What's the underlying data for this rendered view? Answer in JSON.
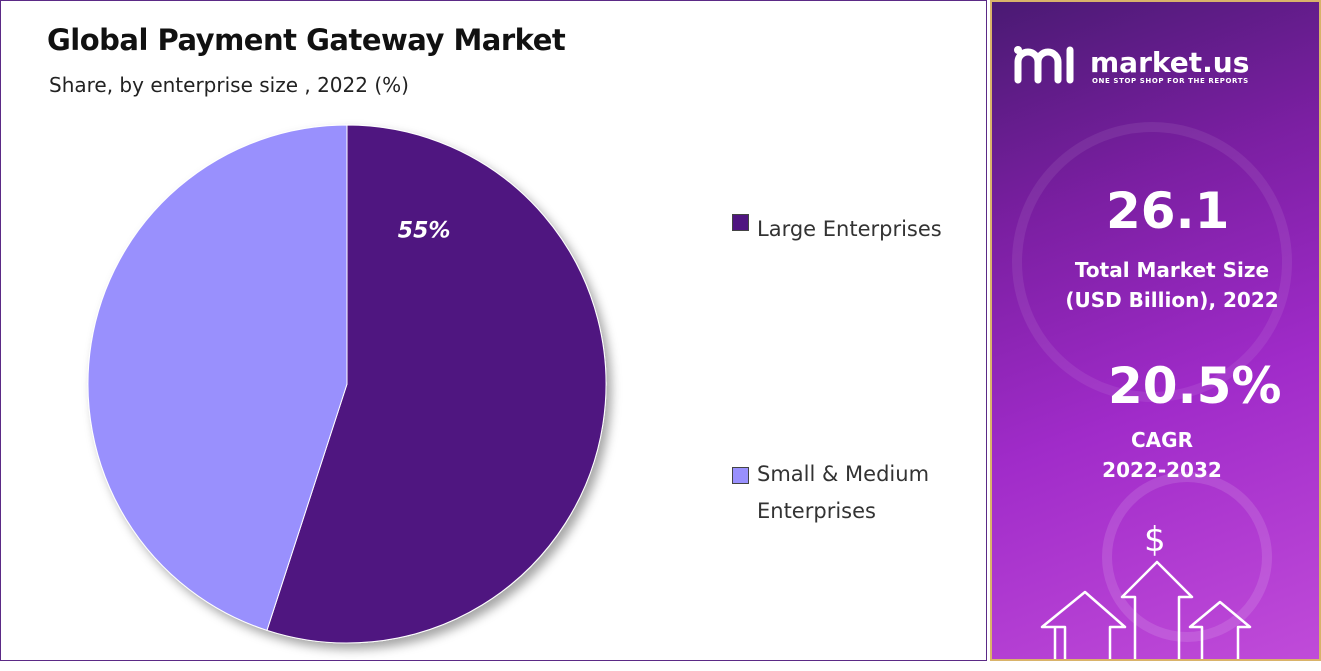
{
  "title": "Global Payment Gateway Market",
  "subtitle": "Share, by enterprise size , 2022 (%)",
  "chart_data": {
    "type": "pie",
    "title": "Global Payment Gateway Market",
    "subtitle": "Share, by enterprise size , 2022 (%)",
    "slices": [
      {
        "name": "Large Enterprises",
        "value": 55,
        "label": "55%",
        "color": "#4f1580"
      },
      {
        "name": "Small & Medium Enterprises",
        "value": 45,
        "label": "",
        "color": "#9990fd"
      }
    ],
    "legend_position": "right"
  },
  "legend": [
    {
      "lines": [
        "Large Enterprises"
      ],
      "color": "#4f1580"
    },
    {
      "lines": [
        "Small & Medium",
        "Enterprises"
      ],
      "color": "#9990fd"
    }
  ],
  "panel": {
    "brand": "market.us",
    "tagline": "ONE STOP SHOP FOR THE REPORTS",
    "market_size_value": "26.1",
    "market_size_label_line1": "Total Market Size",
    "market_size_label_line2": "(USD Billion), 2022",
    "cagr_value": "20.5%",
    "cagr_label_line1": "CAGR",
    "cagr_label_line2": "2022-2032",
    "currency_symbol": "$",
    "colors": {
      "panel_top": "#4a1a73",
      "panel_bottom": "#c04bd9",
      "border": "#d9b36a"
    }
  }
}
